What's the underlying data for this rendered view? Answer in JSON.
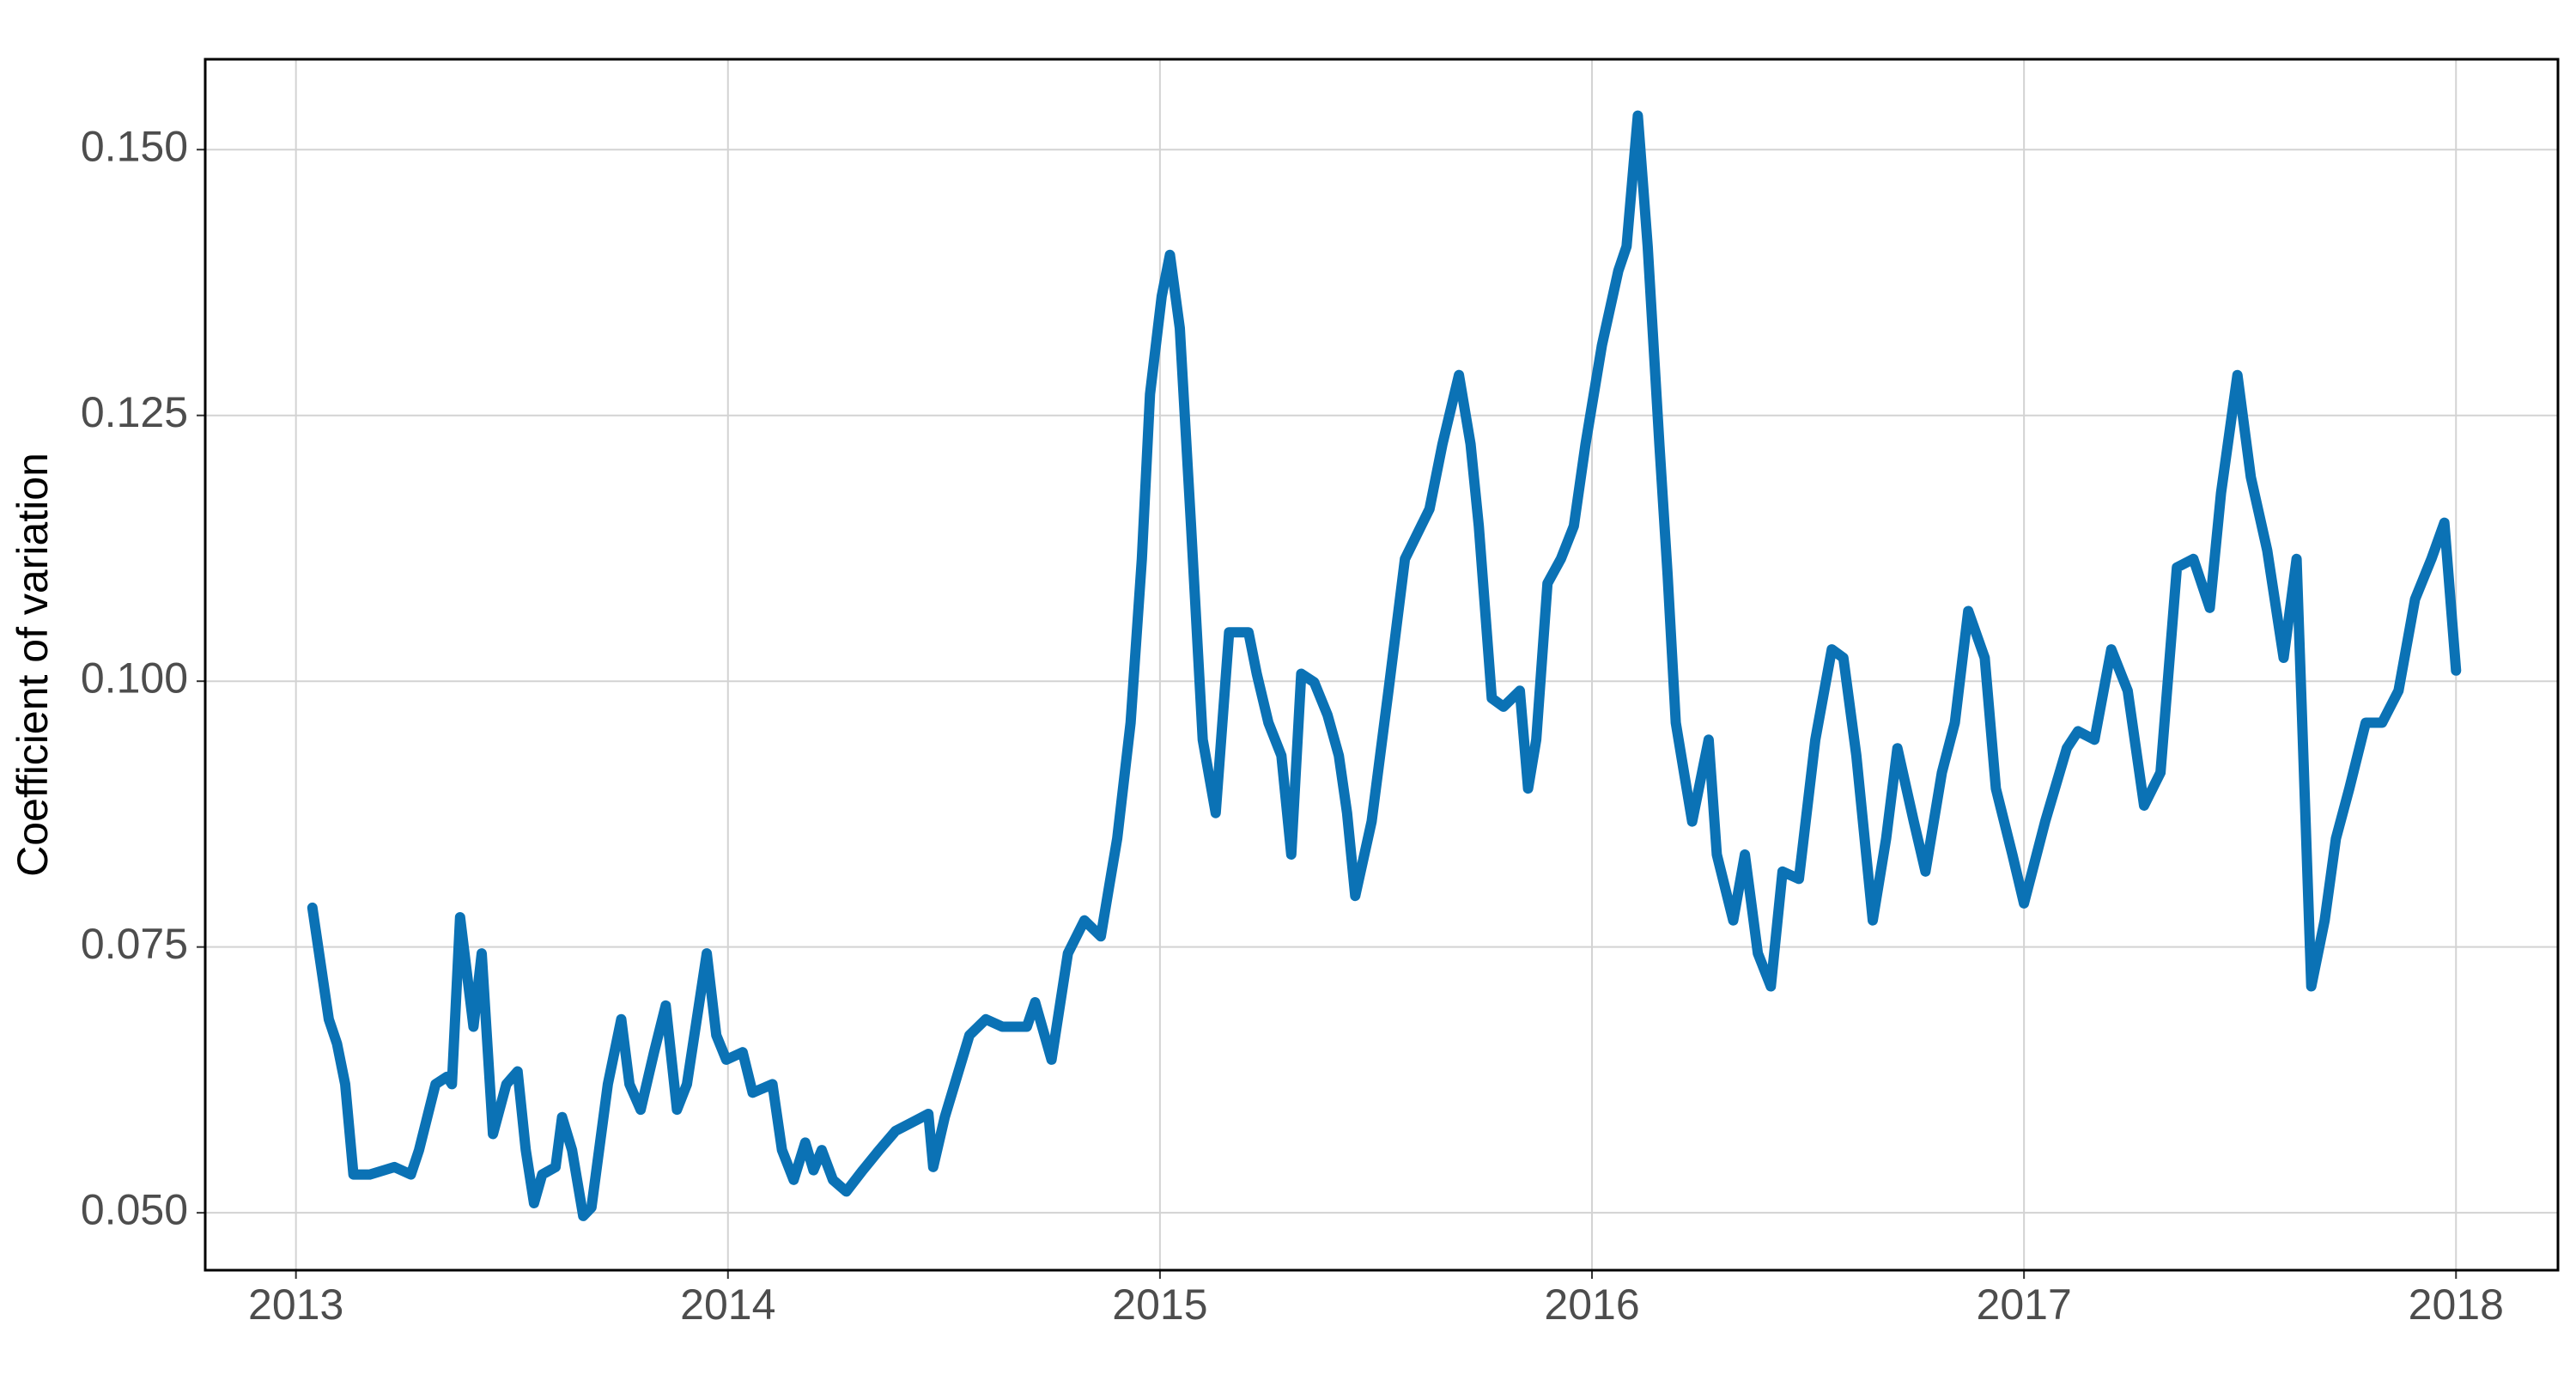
{
  "chart_data": {
    "type": "line",
    "y_label": "Coefficient of variation",
    "xlim": [
      2012.79,
      2018.236
    ],
    "xticks": [
      2013,
      2014,
      2015,
      2016,
      2017,
      2018
    ],
    "ylim": [
      0.0446,
      0.1585
    ],
    "yticks": [
      {
        "value": 0.05,
        "label": "0.050"
      },
      {
        "value": 0.075,
        "label": "0.075"
      },
      {
        "value": 0.1,
        "label": "0.100"
      },
      {
        "value": 0.125,
        "label": "0.125"
      },
      {
        "value": 0.15,
        "label": "0.150"
      }
    ],
    "grid": true,
    "series": [
      {
        "color": "#0b72b5",
        "x": [
          2013.038,
          2013.076,
          2013.095,
          2013.114,
          2013.133,
          2013.171,
          2013.228,
          2013.266,
          2013.285,
          2013.323,
          2013.35,
          2013.361,
          2013.38,
          2013.411,
          2013.43,
          2013.456,
          2013.487,
          2013.513,
          2013.532,
          2013.551,
          2013.57,
          2013.601,
          2013.616,
          2013.639,
          2013.665,
          2013.684,
          2013.722,
          2013.753,
          2013.772,
          2013.798,
          2013.829,
          2013.856,
          2013.882,
          2013.905,
          2013.951,
          2013.973,
          2013.996,
          2014.034,
          2014.057,
          2014.103,
          2014.125,
          2014.152,
          2014.179,
          2014.198,
          2014.217,
          2014.243,
          2014.274,
          2014.312,
          2014.35,
          2014.388,
          2014.426,
          2014.464,
          2014.475,
          2014.502,
          2014.559,
          2014.597,
          2014.635,
          2014.692,
          2014.711,
          2014.749,
          2014.787,
          2014.825,
          2014.863,
          2014.882,
          2014.901,
          2014.932,
          2014.958,
          2014.977,
          2015.004,
          2015.023,
          2015.046,
          2015.072,
          2015.099,
          2015.129,
          2015.16,
          2015.205,
          2015.224,
          2015.251,
          2015.281,
          2015.304,
          2015.327,
          2015.357,
          2015.388,
          2015.414,
          2015.433,
          2015.452,
          2015.49,
          2015.529,
          2015.567,
          2015.624,
          2015.654,
          2015.692,
          2015.719,
          2015.738,
          2015.768,
          2015.795,
          2015.833,
          2015.852,
          2015.871,
          2015.897,
          2015.928,
          2015.958,
          2015.985,
          2016.023,
          2016.061,
          2016.08,
          2016.106,
          2016.129,
          2016.156,
          2016.175,
          2016.194,
          2016.213,
          2016.232,
          2016.27,
          2016.289,
          2016.327,
          2016.354,
          2016.384,
          2016.414,
          2016.441,
          2016.479,
          2016.517,
          2016.555,
          2016.582,
          2016.612,
          2016.65,
          2016.681,
          2016.707,
          2016.745,
          2016.772,
          2016.81,
          2016.84,
          2016.871,
          2016.909,
          2016.935,
          2016.973,
          2017.0,
          2017.049,
          2017.099,
          2017.125,
          2017.163,
          2017.202,
          2017.24,
          2017.278,
          2017.316,
          2017.354,
          2017.392,
          2017.43,
          2017.456,
          2017.494,
          2017.525,
          2017.563,
          2017.601,
          2017.631,
          2017.665,
          2017.696,
          2017.722,
          2017.753,
          2017.791,
          2017.829,
          2017.867,
          2017.905,
          2017.943,
          2017.973,
          2018.0
        ],
        "values": [
          0.0787,
          0.0682,
          0.0659,
          0.0621,
          0.0536,
          0.0536,
          0.0543,
          0.0536,
          0.0559,
          0.0621,
          0.0628,
          0.0621,
          0.0778,
          0.0675,
          0.0744,
          0.0574,
          0.0621,
          0.0633,
          0.0559,
          0.0509,
          0.0536,
          0.0543,
          0.059,
          0.0559,
          0.0497,
          0.0505,
          0.0621,
          0.0682,
          0.0621,
          0.0597,
          0.0651,
          0.0695,
          0.0597,
          0.0621,
          0.0744,
          0.0667,
          0.0644,
          0.0651,
          0.0613,
          0.0621,
          0.0559,
          0.0531,
          0.0566,
          0.054,
          0.0559,
          0.0531,
          0.052,
          0.054,
          0.0559,
          0.0577,
          0.0585,
          0.0593,
          0.0543,
          0.059,
          0.0667,
          0.0682,
          0.0675,
          0.0675,
          0.0698,
          0.0644,
          0.0744,
          0.0775,
          0.076,
          0.0806,
          0.0852,
          0.0961,
          0.1115,
          0.127,
          0.1362,
          0.1401,
          0.1332,
          0.1146,
          0.0945,
          0.0876,
          0.1046,
          0.1046,
          0.1007,
          0.0961,
          0.093,
          0.0837,
          0.1007,
          0.0999,
          0.0968,
          0.093,
          0.0876,
          0.0798,
          0.0868,
          0.0991,
          0.1115,
          0.1162,
          0.1223,
          0.1288,
          0.1223,
          0.1146,
          0.0984,
          0.0976,
          0.0991,
          0.0899,
          0.0945,
          0.1092,
          0.1115,
          0.1146,
          0.1223,
          0.1316,
          0.1386,
          0.1409,
          0.1532,
          0.1409,
          0.1223,
          0.11,
          0.0961,
          0.0914,
          0.0868,
          0.0945,
          0.0837,
          0.0775,
          0.0837,
          0.0744,
          0.0713,
          0.0821,
          0.0814,
          0.0945,
          0.103,
          0.1022,
          0.093,
          0.0775,
          0.0852,
          0.0937,
          0.0868,
          0.0821,
          0.0914,
          0.0961,
          0.1066,
          0.1022,
          0.0899,
          0.0837,
          0.0791,
          0.0868,
          0.0937,
          0.0953,
          0.0945,
          0.103,
          0.0991,
          0.0883,
          0.0914,
          0.1107,
          0.1115,
          0.1069,
          0.1177,
          0.1288,
          0.1192,
          0.1123,
          0.1022,
          0.1115,
          0.0713,
          0.0775,
          0.0852,
          0.0899,
          0.0961,
          0.0961,
          0.0991,
          0.1077,
          0.1115,
          0.1149,
          0.101
        ]
      }
    ]
  }
}
